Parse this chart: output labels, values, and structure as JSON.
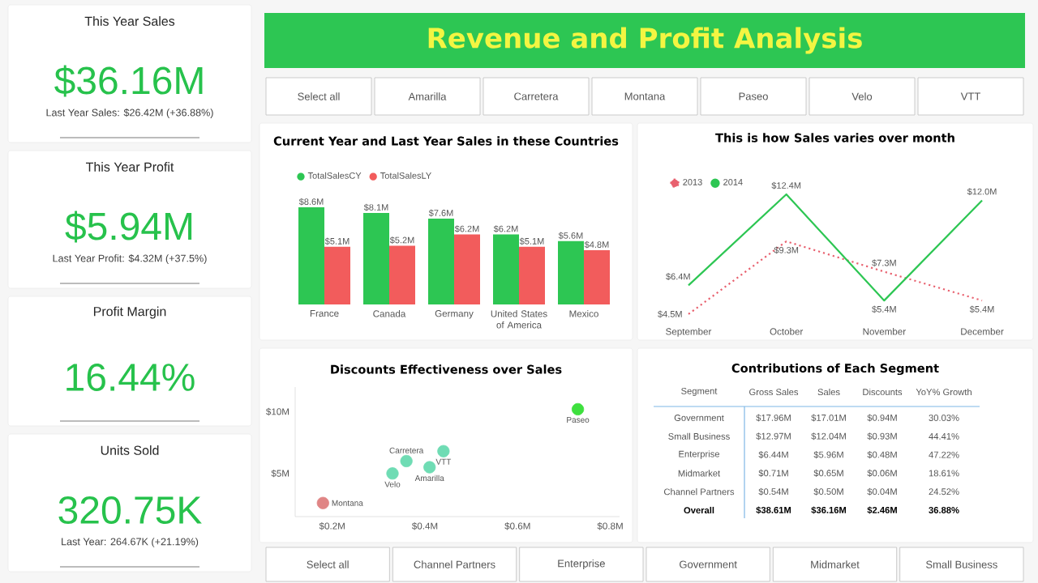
{
  "chart_data": [
    {
      "type": "other",
      "title": "Revenue and Profit Analysis"
    },
    {
      "type": "other",
      "annotations": [
        "Select all",
        "Amarilla",
        "Carretera",
        "Montana",
        "Paseo",
        "Velo",
        "VTT"
      ]
    },
    {
      "type": "other",
      "title": "This Year Sales",
      "annotations": [
        "$36.16M",
        "Last Year Sales: $26.42M (+36.88%)"
      ]
    },
    {
      "type": "other",
      "title": "This Year Profit",
      "annotations": [
        "$5.94M",
        "Last Year Profit: $4.32M (+37.5%)"
      ]
    },
    {
      "type": "other",
      "title": "Profit Margin",
      "annotations": [
        "16.44%"
      ]
    },
    {
      "type": "other",
      "title": "Units Sold",
      "annotations": [
        "320.75K",
        "Last Year: 264.67K (+21.19%)"
      ]
    },
    {
      "type": "bar",
      "title": "Current Year and Last Year Sales in these Countries",
      "categories": [
        "France",
        "Canada",
        "Germany",
        "United States of America",
        "Mexico"
      ],
      "legend": "top left",
      "series": [
        {
          "name": "TotalSalesCY",
          "color": "#2dc653",
          "values": [
            8.6,
            8.1,
            7.6,
            6.2,
            5.6
          ],
          "value_labels": [
            "$8.6M",
            "$8.1M",
            "$7.6M",
            "$6.2M",
            "$5.6M"
          ]
        },
        {
          "name": "TotalSalesLY",
          "color": "#f25c5c",
          "values": [
            5.1,
            5.2,
            6.2,
            5.1,
            4.8
          ],
          "value_labels": [
            "$5.1M",
            "$5.2M",
            "$6.2M",
            "$5.1M",
            "$4.8M"
          ]
        }
      ]
    },
    {
      "type": "line",
      "title": "This is how Sales varies over month",
      "categories": [
        "September",
        "October",
        "November",
        "December"
      ],
      "legend": "top left",
      "line_style": "solid",
      "series": [
        {
          "name": "2013",
          "color": "#e8606e",
          "line_style": "dotted",
          "values": [
            4.5,
            9.3,
            7.3,
            5.4
          ],
          "value_labels": [
            "$4.5M",
            "$9.3M",
            "$7.3M",
            "$5.4M"
          ]
        },
        {
          "name": "2014",
          "color": "#2dc653",
          "values": [
            6.4,
            12.4,
            5.4,
            12.0
          ],
          "value_labels": [
            "$6.4M",
            "$12.4M",
            "$5.4M",
            "$12.0M"
          ]
        }
      ]
    },
    {
      "type": "scatter",
      "title": "Discounts Effectiveness over Sales",
      "marker": "circle",
      "x": [
        0.73,
        0.44,
        0.41,
        0.36,
        0.33,
        0.18
      ],
      "values": [
        10.2,
        6.8,
        5.5,
        6.0,
        5.0,
        2.6
      ],
      "colors": [
        "#3ee03e",
        "#6fdcb4",
        "#6fdcb4",
        "#6fdcb4",
        "#6fdcb4",
        "#e08585"
      ],
      "xlim": [
        0.12,
        0.82
      ],
      "ylim": [
        1.5,
        12
      ],
      "xticks": [
        {
          "value": 0.2,
          "label": "$0.2M"
        },
        {
          "value": 0.4,
          "label": "$0.4M"
        },
        {
          "value": 0.6,
          "label": "$0.6M"
        },
        {
          "value": 0.8,
          "label": "$0.8M"
        }
      ],
      "yticks": [
        {
          "value": 5,
          "label": "$5M"
        },
        {
          "value": 10,
          "label": "$10M"
        }
      ],
      "annotations": [
        {
          "text": "Paseo",
          "x": 0.73,
          "y": 10.2
        },
        {
          "text": "VTT",
          "x": 0.44,
          "y": 6.8
        },
        {
          "text": "Amarilla",
          "x": 0.41,
          "y": 5.5
        },
        {
          "text": "Carretera",
          "x": 0.36,
          "y": 6.0
        },
        {
          "text": "Velo",
          "x": 0.33,
          "y": 5.0
        },
        {
          "text": "Montana",
          "x": 0.18,
          "y": 2.6
        }
      ]
    },
    {
      "type": "other",
      "title": "Contributions of Each Segment",
      "annotations": [
        "Segment",
        "Gross Sales",
        "Sales",
        "Discounts",
        "YoY% Growth",
        "Government",
        "$17.96M",
        "$17.01M",
        "$0.94M",
        "30.03%",
        "Small Business",
        "$12.97M",
        "$12.04M",
        "$0.93M",
        "44.41%",
        "Enterprise",
        "$6.44M",
        "$5.96M",
        "$0.48M",
        "47.22%",
        "Midmarket",
        "$0.71M",
        "$0.65M",
        "$0.06M",
        "18.61%",
        "Channel Partners",
        "$0.54M",
        "$0.50M",
        "$0.04M",
        "24.52%",
        "Overall",
        "$38.61M",
        "$36.16M",
        "$2.46M",
        "36.88%"
      ]
    },
    {
      "type": "other",
      "annotations": [
        "Select all",
        "Channel Partners",
        "Enterprise",
        "Government",
        "Midmarket",
        "Small Business"
      ]
    }
  ]
}
